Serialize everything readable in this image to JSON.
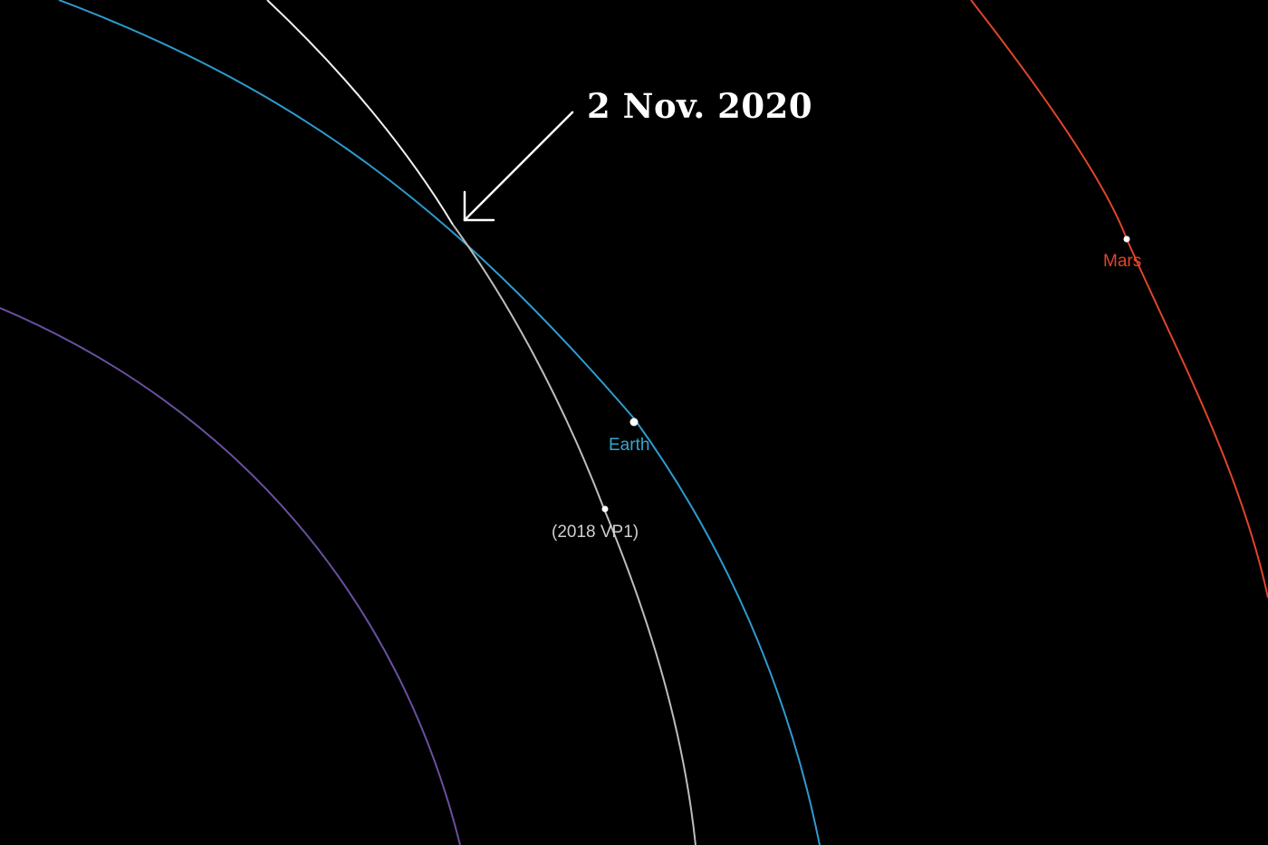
{
  "annotation": {
    "date_text": "2 Nov. 2020",
    "color": "#ffffff"
  },
  "bodies": {
    "mars": {
      "name": "Mars",
      "color": "#e0452a"
    },
    "earth": {
      "name": "Earth",
      "color": "#2e9bd0"
    },
    "asteroid": {
      "name": "(2018 VP1)",
      "color": "#c8c8c8"
    },
    "inner_orbit": {
      "color": "#6a4fa0"
    }
  },
  "background_color": "#000000"
}
